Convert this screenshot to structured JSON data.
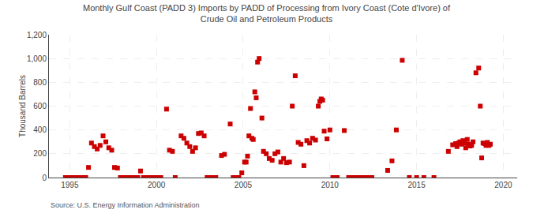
{
  "chart_data": {
    "type": "scatter",
    "title": "Monthly Gulf Coast (PADD 3) Imports by PADD of Processing from Ivory Coast (Cote d'Ivore) of\nCrude Oil and Petroleum Products",
    "ylabel": "Thousand Barrels",
    "annotations": [
      "Source: U.S. Energy Information Administration"
    ],
    "color": "#cc0000",
    "marker": "square",
    "grid": true,
    "xlim": [
      1993.8,
      2020.8
    ],
    "xticks": [
      1995,
      2000,
      2005,
      2010,
      2015,
      2020
    ],
    "ylim": [
      0,
      1200
    ],
    "yticks": [
      0,
      200,
      400,
      600,
      800,
      {
        "value": 1000,
        "label": "1,000"
      },
      {
        "value": 1200,
        "label": "1,200"
      }
    ],
    "x": [
      1994.75,
      1994.92,
      1995.08,
      1995.25,
      1995.42,
      1995.58,
      1995.75,
      1995.92,
      1996.08,
      1996.25,
      1996.42,
      1996.58,
      1996.75,
      1996.92,
      1997.08,
      1997.25,
      1997.42,
      1997.58,
      1997.75,
      1997.92,
      1998.08,
      1998.25,
      1998.42,
      1998.58,
      1998.75,
      1998.92,
      1999.08,
      1999.25,
      1999.42,
      1999.58,
      1999.75,
      1999.92,
      2000.08,
      2000.25,
      2000.58,
      2000.75,
      2000.92,
      2001.08,
      2001.42,
      2001.58,
      2001.75,
      2001.92,
      2002.08,
      2002.25,
      2002.42,
      2002.58,
      2002.75,
      2002.92,
      2003.08,
      2003.25,
      2003.42,
      2003.75,
      2003.92,
      2004.25,
      2004.42,
      2004.58,
      2004.75,
      2004.92,
      2005.08,
      2005.17,
      2005.25,
      2005.33,
      2005.42,
      2005.5,
      2005.58,
      2005.67,
      2005.75,
      2005.83,
      2005.92,
      2006.08,
      2006.17,
      2006.33,
      2006.5,
      2006.67,
      2006.83,
      2007,
      2007.17,
      2007.33,
      2007.5,
      2007.67,
      2007.83,
      2008,
      2008.17,
      2008.33,
      2008.5,
      2008.67,
      2008.83,
      2009,
      2009.17,
      2009.33,
      2009.42,
      2009.5,
      2009.58,
      2009.67,
      2009.83,
      2010,
      2010.17,
      2010.42,
      2010.83,
      2011.08,
      2011.25,
      2011.42,
      2011.58,
      2011.75,
      2011.92,
      2012.08,
      2012.25,
      2012.42,
      2013.33,
      2013.58,
      2013.83,
      2014.17,
      2014.58,
      2015,
      2015.42,
      2016,
      2016.83,
      2017.08,
      2017.25,
      2017.33,
      2017.42,
      2017.5,
      2017.58,
      2017.67,
      2017.75,
      2017.83,
      2017.92,
      2018,
      2018.08,
      2018.17,
      2018.25,
      2018.42,
      2018.58,
      2018.67,
      2018.75,
      2018.83,
      2018.92,
      2019,
      2019.08,
      2019.17,
      2019.25
    ],
    "values": [
      0,
      0,
      0,
      0,
      0,
      0,
      0,
      0,
      85,
      290,
      260,
      240,
      270,
      350,
      300,
      250,
      230,
      85,
      80,
      0,
      0,
      0,
      0,
      0,
      0,
      0,
      55,
      0,
      0,
      0,
      0,
      0,
      0,
      0,
      575,
      230,
      220,
      0,
      350,
      330,
      290,
      260,
      220,
      250,
      370,
      375,
      350,
      0,
      0,
      0,
      0,
      185,
      195,
      450,
      0,
      0,
      0,
      40,
      130,
      130,
      180,
      350,
      580,
      330,
      320,
      720,
      670,
      970,
      1000,
      500,
      220,
      200,
      160,
      145,
      200,
      215,
      130,
      160,
      125,
      130,
      600,
      855,
      295,
      280,
      100,
      310,
      290,
      330,
      315,
      600,
      640,
      660,
      650,
      390,
      325,
      400,
      0,
      0,
      395,
      0,
      0,
      0,
      0,
      0,
      0,
      0,
      0,
      0,
      60,
      140,
      400,
      985,
      0,
      0,
      0,
      0,
      220,
      275,
      285,
      260,
      290,
      300,
      280,
      310,
      290,
      250,
      320,
      280,
      265,
      270,
      300,
      880,
      920,
      600,
      165,
      290,
      285,
      270,
      295,
      270,
      280
    ]
  }
}
